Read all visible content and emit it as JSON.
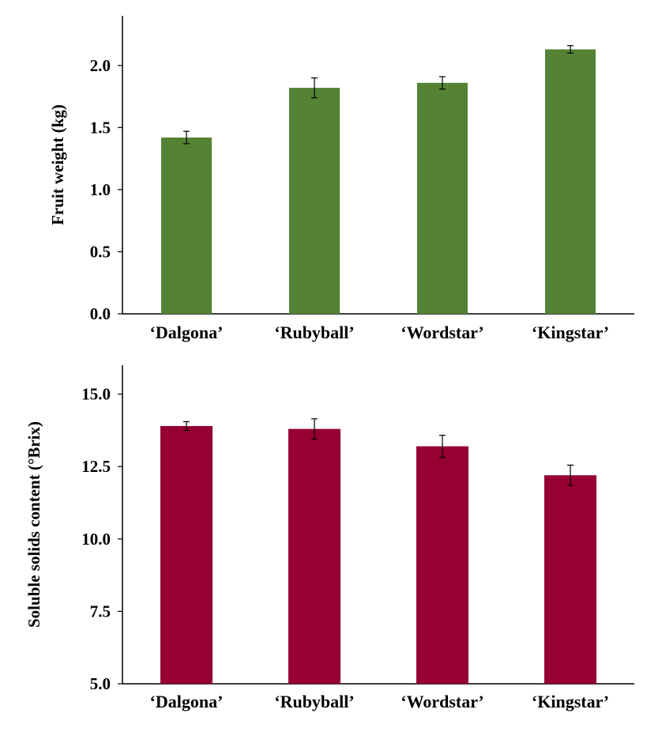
{
  "chart_data": [
    {
      "type": "bar",
      "categories": [
        "‘Dalgona’",
        "‘Rubyball’",
        "‘Wordstar’",
        "‘Kingstar’"
      ],
      "values": [
        1.42,
        1.82,
        1.86,
        2.13
      ],
      "errors": [
        0.05,
        0.08,
        0.05,
        0.03
      ],
      "title": "",
      "xlabel": "",
      "ylabel": "Fruit weight (kg)",
      "ylim": [
        0,
        2.4
      ],
      "yticks": [
        0.0,
        0.5,
        1.0,
        1.5,
        2.0
      ],
      "ytick_labels": [
        "0.0",
        "0.5",
        "1.0",
        "1.5",
        "2.0"
      ],
      "color": "#548235",
      "grid": false,
      "legend": "none"
    },
    {
      "type": "bar",
      "categories": [
        "‘Dalgona’",
        "‘Rubyball’",
        "‘Wordstar’",
        "‘Kingstar’"
      ],
      "values": [
        13.9,
        13.8,
        13.2,
        12.2
      ],
      "errors": [
        0.15,
        0.35,
        0.38,
        0.35
      ],
      "title": "",
      "xlabel": "",
      "ylabel": "Soluble solids content (°Brix)",
      "ylim": [
        5.0,
        16.0
      ],
      "yticks": [
        5.0,
        7.5,
        10.0,
        12.5,
        15.0
      ],
      "ytick_labels": [
        "5.0",
        "7.5",
        "10.0",
        "12.5",
        "15.0"
      ],
      "color": "#960032",
      "grid": false,
      "legend": "none"
    }
  ]
}
